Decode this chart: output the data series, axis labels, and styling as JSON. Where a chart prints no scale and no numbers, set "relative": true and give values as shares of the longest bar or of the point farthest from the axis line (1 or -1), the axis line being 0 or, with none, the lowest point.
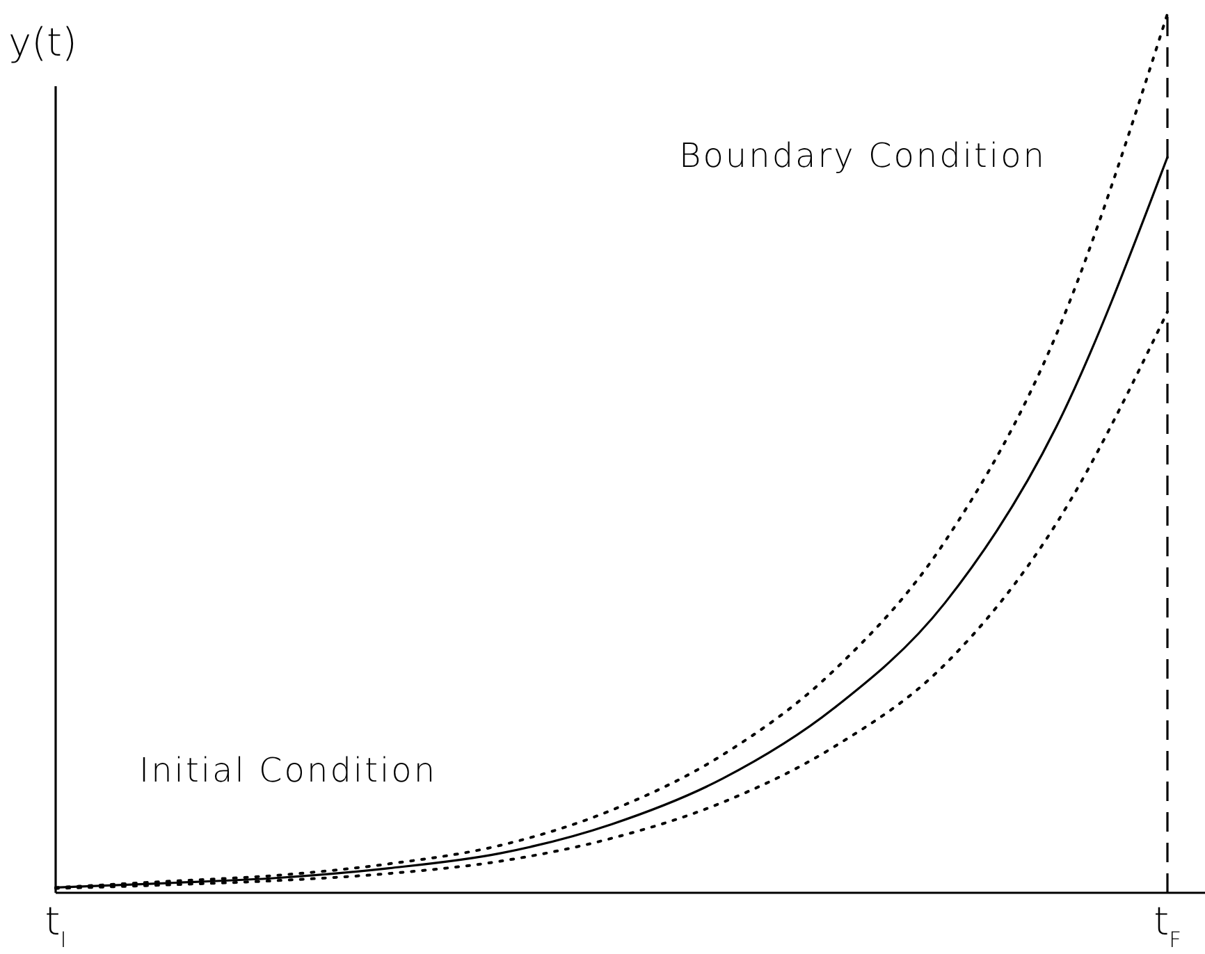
{
  "chart_data": {
    "type": "line",
    "relative": true,
    "ylabel": "y(t)",
    "categories": [
      "t$_{I}$",
      null,
      null,
      null,
      null,
      null,
      null,
      null,
      null,
      null,
      "t$_{F}$"
    ],
    "series": [
      {
        "color": "#000000",
        "line_style": "solid",
        "values": [
          0.006,
          0.011,
          0.017,
          0.028,
          0.045,
          0.078,
          0.13,
          0.21,
          0.33,
          0.53,
          0.837
        ]
      },
      {
        "color": "#000000",
        "line_style": "dotted",
        "values": [
          0.006,
          0.013,
          0.02,
          0.033,
          0.054,
          0.094,
          0.157,
          0.253,
          0.4,
          0.635,
          1.0
        ]
      },
      {
        "color": "#000000",
        "line_style": "dotted",
        "values": [
          0.005,
          0.009,
          0.014,
          0.022,
          0.036,
          0.062,
          0.103,
          0.166,
          0.26,
          0.42,
          0.661
        ]
      }
    ],
    "ref_lines": [
      {
        "axis": "x",
        "value": "t$_{F}$",
        "line_style": "dashed",
        "color": "#000000"
      }
    ],
    "annotations": [
      "Initial Condition",
      "Boundary Condition"
    ],
    "grid": false,
    "marker": "none"
  }
}
